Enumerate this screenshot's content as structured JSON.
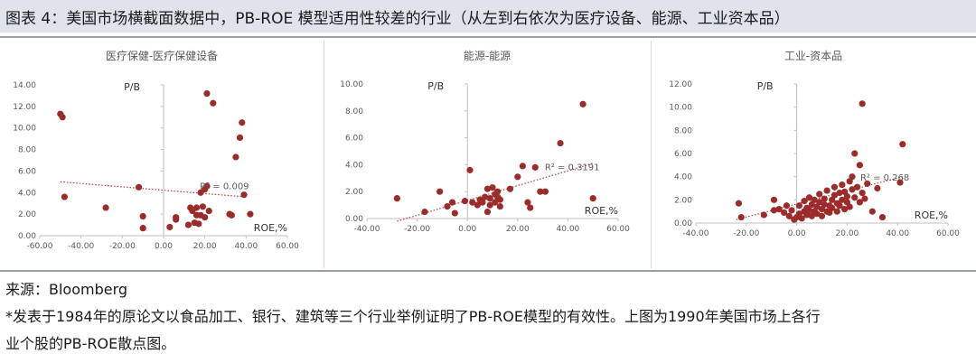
{
  "figure": {
    "title": "图表 4：美国市场横截面数据中，PB-ROE 模型适用性较差的行业（从左到右依次为医疗设备、能源、工业资本品）"
  },
  "notes": {
    "source": "来源：Bloomberg",
    "remark_line1": "*发表于1984年的原论文以食品加工、银行、建筑等三个行业举例证明了PB-ROE模型的有效性。上图为1990年美国市场上各行",
    "remark_line2": "业个股的PB-ROE散点图。"
  },
  "colors": {
    "point": "#9c2b2b",
    "trend": "#b03a3a",
    "axis": "#bfbfbf",
    "text": "#595959",
    "header_bg": "#dfe3ec"
  },
  "chart_data": [
    {
      "type": "scatter",
      "title": "医疗保健-医疗保健设备",
      "xlabel": "ROE,%",
      "ylabel": "P/B",
      "xlim": [
        -60,
        60
      ],
      "ylim": [
        0,
        14
      ],
      "xticks": [
        "-60.00",
        "-40.00",
        "-20.00",
        "0.00",
        "20.00",
        "40.00",
        "60.00"
      ],
      "yticks": [
        "0.00",
        "2.00",
        "4.00",
        "6.00",
        "8.00",
        "10.00",
        "12.00",
        "14.00"
      ],
      "grid": false,
      "trendline": {
        "x": [
          -50,
          40
        ],
        "y": [
          5.0,
          3.6
        ]
      },
      "r2_label": "R² = 0.009",
      "points": [
        {
          "x": -50,
          "y": 11.3
        },
        {
          "x": -49,
          "y": 11.0
        },
        {
          "x": -48,
          "y": 3.6
        },
        {
          "x": -28,
          "y": 2.6
        },
        {
          "x": -12,
          "y": 4.5
        },
        {
          "x": -10,
          "y": 1.8
        },
        {
          "x": -10,
          "y": 0.7
        },
        {
          "x": 3,
          "y": 0.8
        },
        {
          "x": 6,
          "y": 1.7
        },
        {
          "x": 6,
          "y": 1.5
        },
        {
          "x": 12,
          "y": 1.0
        },
        {
          "x": 13,
          "y": 2.6
        },
        {
          "x": 14,
          "y": 2.3
        },
        {
          "x": 15,
          "y": 1.2
        },
        {
          "x": 16,
          "y": 1.9
        },
        {
          "x": 16,
          "y": 2.6
        },
        {
          "x": 17,
          "y": 1.1
        },
        {
          "x": 18,
          "y": 4.0
        },
        {
          "x": 18,
          "y": 1.9
        },
        {
          "x": 19,
          "y": 2.7
        },
        {
          "x": 20,
          "y": 1.7
        },
        {
          "x": 20,
          "y": 4.3
        },
        {
          "x": 21,
          "y": 4.6
        },
        {
          "x": 21,
          "y": 13.2
        },
        {
          "x": 22,
          "y": 2.3
        },
        {
          "x": 24,
          "y": 12.3
        },
        {
          "x": 32,
          "y": 2.0
        },
        {
          "x": 33,
          "y": 1.9
        },
        {
          "x": 35,
          "y": 7.3
        },
        {
          "x": 37,
          "y": 9.1
        },
        {
          "x": 38,
          "y": 10.5
        },
        {
          "x": 39,
          "y": 3.8
        },
        {
          "x": 42,
          "y": 2.0
        }
      ]
    },
    {
      "type": "scatter",
      "title": "能源-能源",
      "xlabel": "ROE,%",
      "ylabel": "P/B",
      "xlim": [
        -40,
        60
      ],
      "ylim": [
        0,
        10
      ],
      "xticks": [
        "-40.00",
        "-20.00",
        "0.00",
        "20.00",
        "40.00",
        "60.00"
      ],
      "yticks": [
        "0.00",
        "2.00",
        "4.00",
        "6.00",
        "8.00",
        "10.00"
      ],
      "grid": false,
      "trendline": {
        "x": [
          -28,
          50
        ],
        "y": [
          -0.2,
          4.1
        ]
      },
      "r2_label": "R² = 0.3191",
      "points": [
        {
          "x": -28,
          "y": 1.5
        },
        {
          "x": -17,
          "y": 0.5
        },
        {
          "x": -11,
          "y": 2.0
        },
        {
          "x": -8,
          "y": 0.9
        },
        {
          "x": -6,
          "y": 1.2
        },
        {
          "x": -5,
          "y": 0.4
        },
        {
          "x": -1,
          "y": 1.3
        },
        {
          "x": 1,
          "y": 3.6
        },
        {
          "x": 2,
          "y": 1.2
        },
        {
          "x": 4,
          "y": 1.0
        },
        {
          "x": 5,
          "y": 1.4
        },
        {
          "x": 6,
          "y": 1.2
        },
        {
          "x": 7,
          "y": 1.6
        },
        {
          "x": 8,
          "y": 0.5
        },
        {
          "x": 8,
          "y": 2.2
        },
        {
          "x": 9,
          "y": 1.0
        },
        {
          "x": 9,
          "y": 1.5
        },
        {
          "x": 10,
          "y": 2.3
        },
        {
          "x": 11,
          "y": 1.8
        },
        {
          "x": 11,
          "y": 1.2
        },
        {
          "x": 12,
          "y": 1.6
        },
        {
          "x": 12,
          "y": 2.0
        },
        {
          "x": 13,
          "y": 0.9
        },
        {
          "x": 13,
          "y": 1.4
        },
        {
          "x": 17,
          "y": 2.2
        },
        {
          "x": 20,
          "y": 3.1
        },
        {
          "x": 22,
          "y": 3.9
        },
        {
          "x": 24,
          "y": 1.2
        },
        {
          "x": 25,
          "y": 0.8
        },
        {
          "x": 27,
          "y": 3.8
        },
        {
          "x": 29,
          "y": 2.0
        },
        {
          "x": 31,
          "y": 2.0
        },
        {
          "x": 37,
          "y": 5.6
        },
        {
          "x": 46,
          "y": 8.5
        },
        {
          "x": 50,
          "y": 1.5
        }
      ]
    },
    {
      "type": "scatter",
      "title": "工业-资本品",
      "xlabel": "ROE,%",
      "ylabel": "P/B",
      "xlim": [
        -40,
        60
      ],
      "ylim": [
        0,
        12
      ],
      "xticks": [
        "-40.00",
        "-20.00",
        "0.00",
        "20.00",
        "40.00",
        "60.00"
      ],
      "yticks": [
        "0.00",
        "2.00",
        "4.00",
        "6.00",
        "8.00",
        "10.00",
        "12.00"
      ],
      "grid": false,
      "trendline": {
        "x": [
          -24,
          42
        ],
        "y": [
          0.3,
          4.0
        ]
      },
      "r2_label": "R² = 0.268",
      "points": [
        {
          "x": -23,
          "y": 1.7
        },
        {
          "x": -22,
          "y": 0.5
        },
        {
          "x": -13,
          "y": 0.7
        },
        {
          "x": -9,
          "y": 2.0
        },
        {
          "x": -9,
          "y": 1.1
        },
        {
          "x": -7,
          "y": 1.2
        },
        {
          "x": -5,
          "y": 0.9
        },
        {
          "x": -4,
          "y": 1.5
        },
        {
          "x": -3,
          "y": 0.6
        },
        {
          "x": -2,
          "y": 1.1
        },
        {
          "x": -1,
          "y": 0.3
        },
        {
          "x": 0,
          "y": 0.5
        },
        {
          "x": 1,
          "y": 0.8
        },
        {
          "x": 1,
          "y": 1.5
        },
        {
          "x": 2,
          "y": 0.4
        },
        {
          "x": 3,
          "y": 1.0
        },
        {
          "x": 3,
          "y": 1.9
        },
        {
          "x": 4,
          "y": 0.7
        },
        {
          "x": 4,
          "y": 1.3
        },
        {
          "x": 5,
          "y": 1.1
        },
        {
          "x": 5,
          "y": 2.2
        },
        {
          "x": 6,
          "y": 0.6
        },
        {
          "x": 6,
          "y": 1.6
        },
        {
          "x": 7,
          "y": 1.0
        },
        {
          "x": 7,
          "y": 2.0
        },
        {
          "x": 8,
          "y": 1.4
        },
        {
          "x": 8,
          "y": 0.8
        },
        {
          "x": 9,
          "y": 1.8
        },
        {
          "x": 9,
          "y": 2.5
        },
        {
          "x": 10,
          "y": 1.2
        },
        {
          "x": 10,
          "y": 0.6
        },
        {
          "x": 11,
          "y": 1.6
        },
        {
          "x": 11,
          "y": 2.1
        },
        {
          "x": 12,
          "y": 1.0
        },
        {
          "x": 12,
          "y": 2.8
        },
        {
          "x": 13,
          "y": 1.5
        },
        {
          "x": 13,
          "y": 0.9
        },
        {
          "x": 14,
          "y": 2.0
        },
        {
          "x": 14,
          "y": 1.3
        },
        {
          "x": 15,
          "y": 2.4
        },
        {
          "x": 15,
          "y": 3.1
        },
        {
          "x": 16,
          "y": 1.7
        },
        {
          "x": 16,
          "y": 1.0
        },
        {
          "x": 17,
          "y": 2.6
        },
        {
          "x": 17,
          "y": 1.5
        },
        {
          "x": 18,
          "y": 2.0
        },
        {
          "x": 18,
          "y": 3.3
        },
        {
          "x": 19,
          "y": 1.2
        },
        {
          "x": 19,
          "y": 2.7
        },
        {
          "x": 20,
          "y": 1.8
        },
        {
          "x": 20,
          "y": 2.3
        },
        {
          "x": 21,
          "y": 3.6
        },
        {
          "x": 21,
          "y": 1.4
        },
        {
          "x": 22,
          "y": 2.9
        },
        {
          "x": 22,
          "y": 4.0
        },
        {
          "x": 23,
          "y": 6.0
        },
        {
          "x": 23,
          "y": 2.2
        },
        {
          "x": 24,
          "y": 3.1
        },
        {
          "x": 25,
          "y": 5.0
        },
        {
          "x": 25,
          "y": 1.8
        },
        {
          "x": 26,
          "y": 10.3
        },
        {
          "x": 26,
          "y": 2.6
        },
        {
          "x": 27,
          "y": 2.1
        },
        {
          "x": 28,
          "y": 3.4
        },
        {
          "x": 30,
          "y": 1.0
        },
        {
          "x": 32,
          "y": 3.0
        },
        {
          "x": 34,
          "y": 0.5
        },
        {
          "x": 41,
          "y": 3.5
        },
        {
          "x": 42,
          "y": 6.8
        }
      ]
    }
  ]
}
